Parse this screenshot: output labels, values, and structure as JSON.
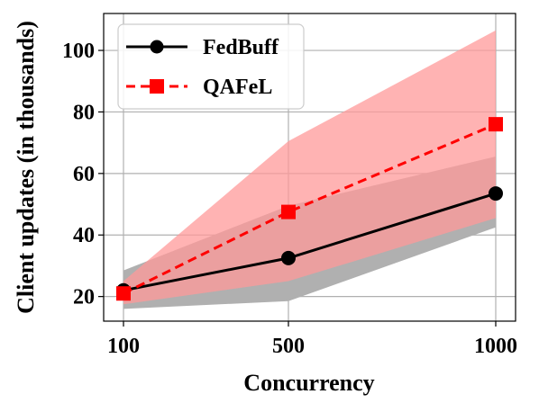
{
  "chart_data": {
    "type": "line",
    "xlabel": "Concurrency",
    "ylabel": "Client updates (in thousands)",
    "x": [
      100,
      500,
      1000
    ],
    "xticks": [
      "100",
      "500",
      "1000"
    ],
    "yticks": [
      "20",
      "40",
      "60",
      "80",
      "100"
    ],
    "ylim": [
      12,
      112
    ],
    "grid": true,
    "legend_position": "top-left",
    "series": [
      {
        "name": "FedBuff",
        "values": [
          22.0,
          32.5,
          53.5
        ],
        "lower": [
          16.0,
          18.5,
          42.5
        ],
        "upper": [
          28.5,
          49.5,
          65.5
        ],
        "color": "#000000",
        "band_color": "#b0b0b0",
        "line_style": "solid",
        "marker": "circle"
      },
      {
        "name": "QAFeL",
        "values": [
          21.0,
          47.5,
          76.0
        ],
        "lower": [
          17.5,
          25.0,
          45.5
        ],
        "upper": [
          25.0,
          70.5,
          106.5
        ],
        "color": "#ff0000",
        "band_color": "#ff9999",
        "line_style": "dashed",
        "marker": "square"
      }
    ]
  }
}
